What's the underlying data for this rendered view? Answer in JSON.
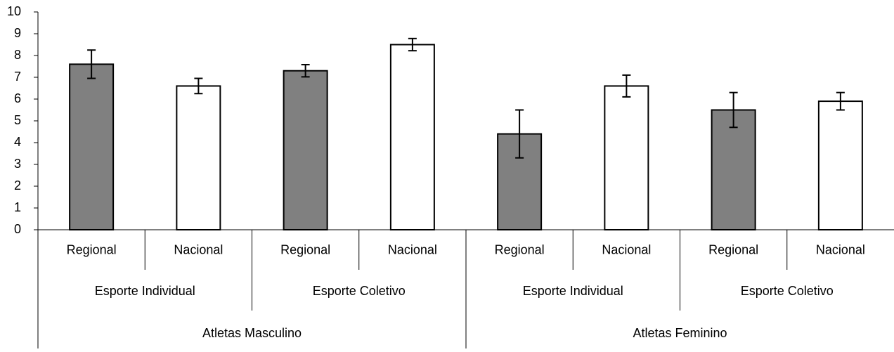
{
  "chart_data": {
    "type": "bar",
    "title": "",
    "xlabel": "",
    "ylabel": "",
    "ylim": [
      0,
      10
    ],
    "yticks": [
      0,
      1,
      2,
      3,
      4,
      5,
      6,
      7,
      8,
      9,
      10
    ],
    "grid": false,
    "colors": {
      "regional": "#808080",
      "nacional": "#ffffff",
      "outline": "#000000"
    },
    "groups_level3": [
      "Atletas Masculino",
      "Atletas Feminino"
    ],
    "groups_level2": [
      "Esporte Individual",
      "Esporte Coletivo",
      "Esporte Individual",
      "Esporte Coletivo"
    ],
    "categories": [
      "Regional",
      "Nacional",
      "Regional",
      "Nacional",
      "Regional",
      "Nacional",
      "Regional",
      "Nacional"
    ],
    "values": [
      7.6,
      6.6,
      7.3,
      8.5,
      4.4,
      6.6,
      5.5,
      5.9
    ],
    "error": [
      0.65,
      0.35,
      0.28,
      0.28,
      1.1,
      0.5,
      0.8,
      0.4
    ],
    "fill": [
      "regional",
      "nacional",
      "regional",
      "nacional",
      "regional",
      "nacional",
      "regional",
      "nacional"
    ]
  }
}
